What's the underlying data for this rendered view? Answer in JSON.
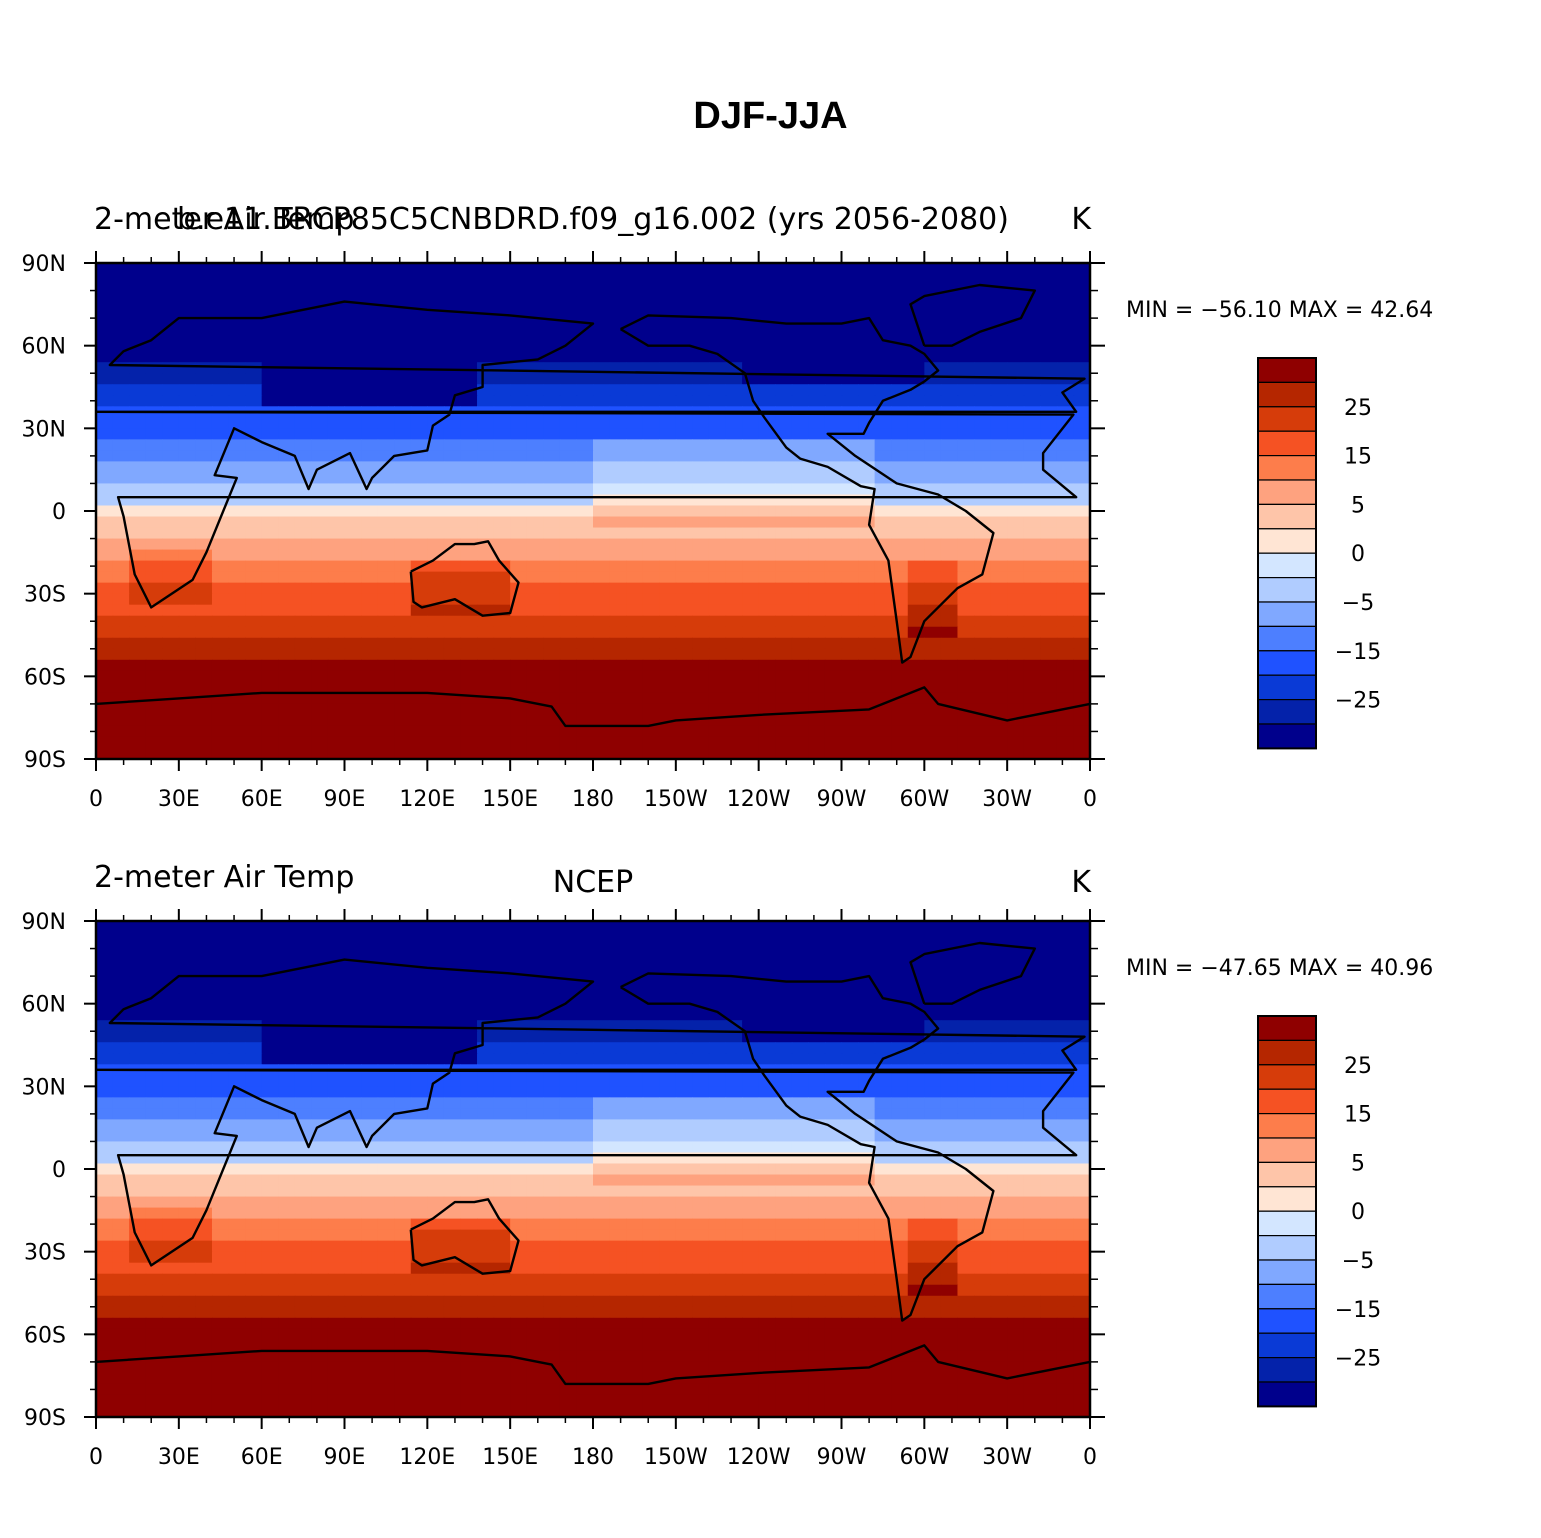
{
  "figure": {
    "title": "DJF-JJA"
  },
  "panels": [
    {
      "left_title": "2-meter Air Temp",
      "center_title": "b.e11.BRCP85C5CNBDRD.f09_g16.002 (yrs 2056-2080)",
      "units": "K",
      "minmax_text": "MIN = −56.10  MAX =   42.64"
    },
    {
      "left_title": "2-meter Air Temp",
      "center_title": "NCEP",
      "units": "K",
      "minmax_text": "MIN = −47.65  MAX =   40.96"
    }
  ],
  "chart_data": {
    "type": "heatmap",
    "projection": "cylindrical equidistant",
    "lon_ticks": [
      "0",
      "30E",
      "60E",
      "90E",
      "120E",
      "150E",
      "180",
      "150W",
      "120W",
      "90W",
      "60W",
      "30W",
      "0"
    ],
    "lat_ticks": [
      "90N",
      "60N",
      "30N",
      "0",
      "30S",
      "60S",
      "90S"
    ],
    "xlim": [
      0,
      360
    ],
    "ylim": [
      -90,
      90
    ],
    "colorbar": {
      "levels": [
        -35,
        -30,
        -25,
        -20,
        -15,
        -10,
        -5,
        -2,
        0,
        2,
        5,
        10,
        15,
        20,
        25,
        30
      ],
      "tick_labels": [
        "25",
        "15",
        "5",
        "0",
        "−5",
        "−15",
        "−25"
      ],
      "colors": [
        "#8f0000",
        "#b52600",
        "#d63c0a",
        "#f55223",
        "#fd7d4b",
        "#fea27f",
        "#fec5a9",
        "#ffe5d4",
        "#d3e6ff",
        "#b0ccff",
        "#80a8ff",
        "#4d7fff",
        "#1f52ff",
        "#0a3ad6",
        "#0422aa",
        "#00008c"
      ]
    },
    "series": [
      {
        "name": "b.e11.BRCP85C5CNBDRD.f09_g16.002",
        "min": -56.1,
        "max": 42.64
      },
      {
        "name": "NCEP",
        "min": -47.65,
        "max": 40.96
      }
    ]
  }
}
